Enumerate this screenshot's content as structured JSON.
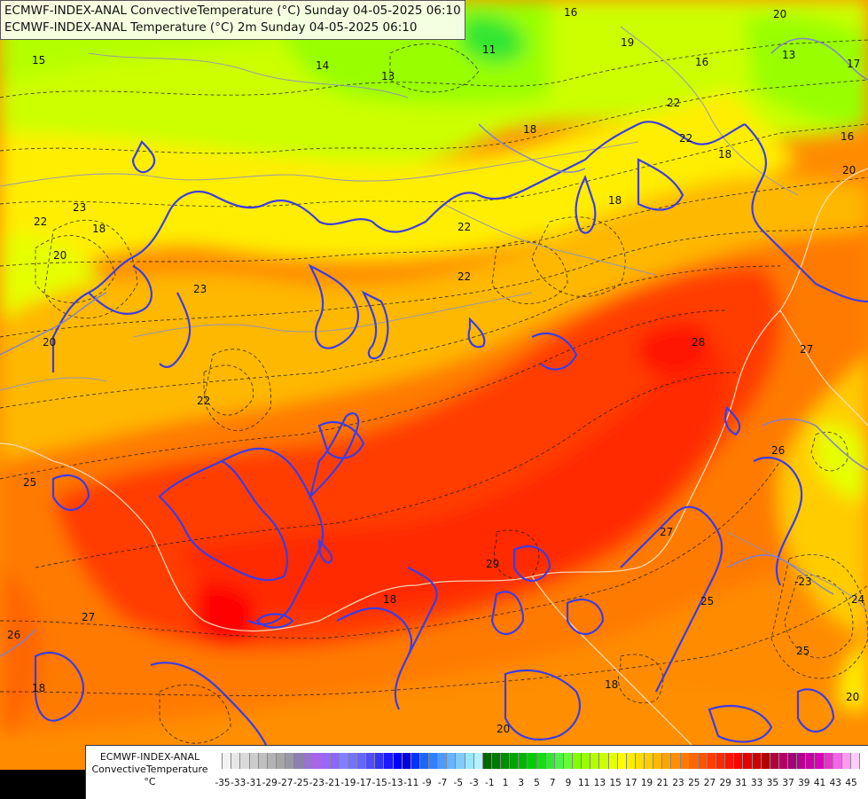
{
  "titles": [
    "ECMWF-INDEX-ANAL ConvectiveTemperature (°C) Sunday 04-05-2025 06:10",
    "ECMWF-INDEX-ANAL Temperature (°C) 2m Sunday 04-05-2025 06:10"
  ],
  "legend": {
    "line1": "ECMWF-INDEX-ANAL",
    "line2": "ConvectiveTemperature",
    "unit": "°C",
    "ticks": [
      "-35",
      "-33",
      "-31",
      "-29",
      "-27",
      "-25",
      "-23",
      "-21",
      "-19",
      "-17",
      "-15",
      "-13",
      "-11",
      "-9",
      "-7",
      "-5",
      "-3",
      "-1",
      "1",
      "3",
      "5",
      "7",
      "9",
      "11",
      "13",
      "15",
      "17",
      "19",
      "21",
      "23",
      "25",
      "27",
      "29",
      "31",
      "33",
      "35",
      "37",
      "39",
      "41",
      "43",
      "45"
    ],
    "colors": [
      "#ffffff",
      "#f2f2f2",
      "#e6e6e6",
      "#d9d9d9",
      "#cccccc",
      "#bfbfbf",
      "#b3b3b3",
      "#a6a6a6",
      "#9999a6",
      "#8c80b3",
      "#9973cc",
      "#a666e6",
      "#9966ff",
      "#8c66ff",
      "#8080ff",
      "#7373ff",
      "#6666ff",
      "#4d4dff",
      "#3333ff",
      "#1a1aff",
      "#0000ff",
      "#0000e6",
      "#0033ff",
      "#1a66ff",
      "#3380ff",
      "#4d99ff",
      "#66b3ff",
      "#80ccff",
      "#99e6ff",
      "#b3f2ff",
      "#006600",
      "#007a00",
      "#008f00",
      "#00a300",
      "#00b800",
      "#00cc00",
      "#1ad91a",
      "#33e633",
      "#4df24d",
      "#66ff33",
      "#80ff00",
      "#99ff00",
      "#b3ff00",
      "#ccff00",
      "#e6ff00",
      "#ffff00",
      "#ffee00",
      "#ffdd00",
      "#ffcc00",
      "#ffb800",
      "#ffa300",
      "#ff8f00",
      "#ff7a00",
      "#ff6600",
      "#ff5200",
      "#ff3d00",
      "#ff2900",
      "#ff1400",
      "#ff0000",
      "#e60000",
      "#cc0000",
      "#b30000",
      "#b3003d",
      "#b30066",
      "#a3007a",
      "#b3008f",
      "#c700a3",
      "#db00b8",
      "#e633cc",
      "#f266e6",
      "#ff99f2",
      "#ffccff"
    ]
  },
  "map_labels": [
    {
      "text": "16"
    },
    {
      "text": "20"
    },
    {
      "text": "15"
    },
    {
      "text": "14"
    },
    {
      "text": "13"
    },
    {
      "text": "19"
    },
    {
      "text": "11"
    },
    {
      "text": "16"
    },
    {
      "text": "13"
    },
    {
      "text": "17"
    },
    {
      "text": "22"
    },
    {
      "text": "18"
    },
    {
      "text": "22"
    },
    {
      "text": "18"
    },
    {
      "text": "16"
    },
    {
      "text": "20"
    },
    {
      "text": "23"
    },
    {
      "text": "18"
    },
    {
      "text": "20"
    },
    {
      "text": "22"
    },
    {
      "text": "22"
    },
    {
      "text": "18"
    },
    {
      "text": "22"
    },
    {
      "text": "20"
    },
    {
      "text": "22"
    },
    {
      "text": "23"
    },
    {
      "text": "25"
    },
    {
      "text": "28"
    },
    {
      "text": "27"
    },
    {
      "text": "26"
    },
    {
      "text": "27"
    },
    {
      "text": "29"
    },
    {
      "text": "18"
    },
    {
      "text": "27"
    },
    {
      "text": "26"
    },
    {
      "text": "18"
    },
    {
      "text": "25"
    },
    {
      "text": "-23"
    },
    {
      "text": "24"
    },
    {
      "text": "20"
    },
    {
      "text": "18"
    },
    {
      "text": "20"
    },
    {
      "text": "25"
    }
  ]
}
